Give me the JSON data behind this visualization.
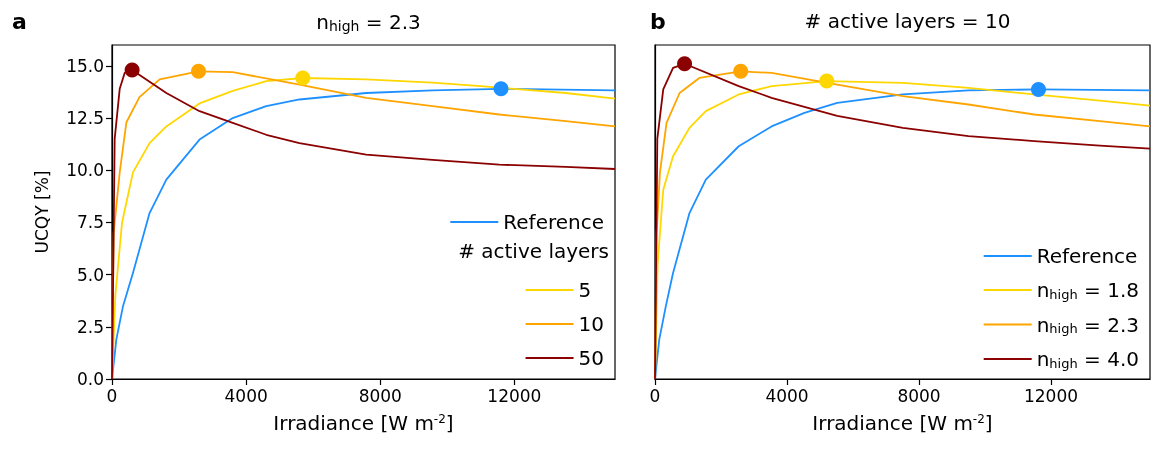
{
  "chart_data": [
    {
      "type": "line",
      "title": "n$_{high}$ = 2.3",
      "xlabel": "Irradiance [W m$^{-2}$]",
      "ylabel": "UCQY [%]",
      "legend_title": "# active layers",
      "annotations": [
        "a"
      ],
      "xlim": [
        0,
        15000
      ],
      "xticks": [
        0,
        4000,
        8000,
        12000
      ],
      "ylim": [
        0,
        16
      ],
      "yticks": [
        {
          "value": 0,
          "label": "0.0"
        },
        2.5,
        {
          "value": 5,
          "label": "5.0"
        },
        7.5,
        {
          "value": 10,
          "label": "10.0"
        },
        12.5,
        {
          "value": 15,
          "label": "15.0"
        }
      ],
      "grid": false,
      "legend": "bottom right",
      "series": [
        {
          "name": "Reference",
          "color": "#1e90ff",
          "x": [
            0,
            130,
            330,
            625,
            1120,
            1620,
            2610,
            3600,
            4600,
            5590,
            7580,
            9560,
            11600,
            15000
          ],
          "values": [
            0,
            1.9,
            3.5,
            5.08,
            7.95,
            9.55,
            11.47,
            12.5,
            13.07,
            13.39,
            13.7,
            13.83,
            13.9,
            13.83
          ]
        },
        {
          "name": "5",
          "color": "#ffd700",
          "x": [
            0,
            100,
            300,
            625,
            1120,
            1620,
            2610,
            3600,
            4600,
            5690,
            7580,
            9560,
            11000,
            13530,
            15000
          ],
          "values": [
            0,
            4,
            7.5,
            9.9,
            11.3,
            12.1,
            13.2,
            13.8,
            14.27,
            14.42,
            14.35,
            14.2,
            14.03,
            13.7,
            13.43
          ]
        },
        {
          "name": "10",
          "color": "#ffa500",
          "x": [
            0,
            50,
            230,
            430,
            820,
            1420,
            2580,
            3600,
            5590,
            7580,
            9560,
            11550,
            13530,
            15000
          ],
          "values": [
            0,
            7,
            9.9,
            12.3,
            13.5,
            14.35,
            14.74,
            14.7,
            14.1,
            13.47,
            13.07,
            12.67,
            12.35,
            12.1
          ]
        },
        {
          "name": "50",
          "color": "#8b0000",
          "x": [
            0,
            80,
            230,
            380,
            600,
            1620,
            2610,
            3600,
            4600,
            5590,
            7580,
            9560,
            11550,
            13530,
            15000
          ],
          "values": [
            0,
            11.5,
            13.9,
            14.67,
            14.8,
            13.7,
            12.83,
            12.27,
            11.7,
            11.3,
            10.75,
            10.5,
            10.27,
            10.16,
            10.06
          ]
        },
        {
          "type": "scatter",
          "marker": "circle",
          "color": "#1e90ff",
          "x": [
            11600
          ],
          "values": [
            13.9
          ]
        },
        {
          "type": "scatter",
          "marker": "circle",
          "color": "#ffd700",
          "x": [
            5690
          ],
          "values": [
            14.42
          ]
        },
        {
          "type": "scatter",
          "marker": "circle",
          "color": "#ffa500",
          "x": [
            2580
          ],
          "values": [
            14.74
          ]
        },
        {
          "type": "scatter",
          "marker": "circle",
          "color": "#8b0000",
          "x": [
            600
          ],
          "values": [
            14.8
          ]
        }
      ]
    },
    {
      "type": "line",
      "title": "# active layers = 10",
      "xlabel": "Irradiance [W m$^{-2}$]",
      "annotations": [
        "b"
      ],
      "xlim": [
        0,
        15000
      ],
      "xticks": [
        0,
        4000,
        8000,
        12000
      ],
      "ylim": [
        0,
        16
      ],
      "tick_labels": "x",
      "grid": false,
      "legend": "bottom right",
      "series": [
        {
          "name": "Reference",
          "color": "#1e90ff",
          "x": [
            0,
            130,
            330,
            547,
            1045,
            1540,
            2537,
            3532,
            4527,
            5522,
            7512,
            9500,
            11620,
            15000
          ],
          "values": [
            0,
            1.9,
            3.5,
            5.08,
            7.95,
            9.55,
            11.15,
            12.1,
            12.75,
            13.23,
            13.63,
            13.83,
            13.87,
            13.83
          ]
        },
        {
          "name": "n$_{high}$ = 1.8",
          "color": "#ffd700",
          "x": [
            0,
            80,
            250,
            547,
            1045,
            1540,
            2537,
            3532,
            5204,
            7512,
            9500,
            11490,
            13480,
            15000
          ],
          "values": [
            0,
            5.5,
            9.07,
            10.67,
            12.03,
            12.83,
            13.63,
            14.03,
            14.27,
            14.19,
            13.95,
            13.63,
            13.34,
            13.1
          ]
        },
        {
          "name": "n$_{high}$ = 2.3",
          "color": "#ffa500",
          "x": [
            0,
            50,
            150,
            350,
            746,
            1343,
            2597,
            3532,
            5522,
            7512,
            9500,
            11490,
            13480,
            15000
          ],
          "values": [
            0,
            7,
            9.9,
            12.27,
            13.7,
            14.42,
            14.74,
            14.66,
            14.1,
            13.55,
            13.15,
            12.67,
            12.35,
            12.1
          ]
        },
        {
          "name": "n$_{high}$ = 4.0",
          "color": "#8b0000",
          "x": [
            0,
            70,
            250,
            547,
            896,
            2537,
            3532,
            5522,
            7512,
            9500,
            11490,
            13480,
            15000
          ],
          "values": [
            0,
            11.5,
            13.87,
            14.9,
            15.1,
            14.03,
            13.47,
            12.6,
            12.03,
            11.63,
            11.4,
            11.18,
            11.04
          ]
        },
        {
          "type": "scatter",
          "marker": "circle",
          "color": "#1e90ff",
          "x": [
            11620
          ],
          "values": [
            13.87
          ]
        },
        {
          "type": "scatter",
          "marker": "circle",
          "color": "#ffd700",
          "x": [
            5204
          ],
          "values": [
            14.27
          ]
        },
        {
          "type": "scatter",
          "marker": "circle",
          "color": "#ffa500",
          "x": [
            2597
          ],
          "values": [
            14.74
          ]
        },
        {
          "type": "scatter",
          "marker": "circle",
          "color": "#8b0000",
          "x": [
            896
          ],
          "values": [
            15.1
          ]
        }
      ]
    }
  ]
}
